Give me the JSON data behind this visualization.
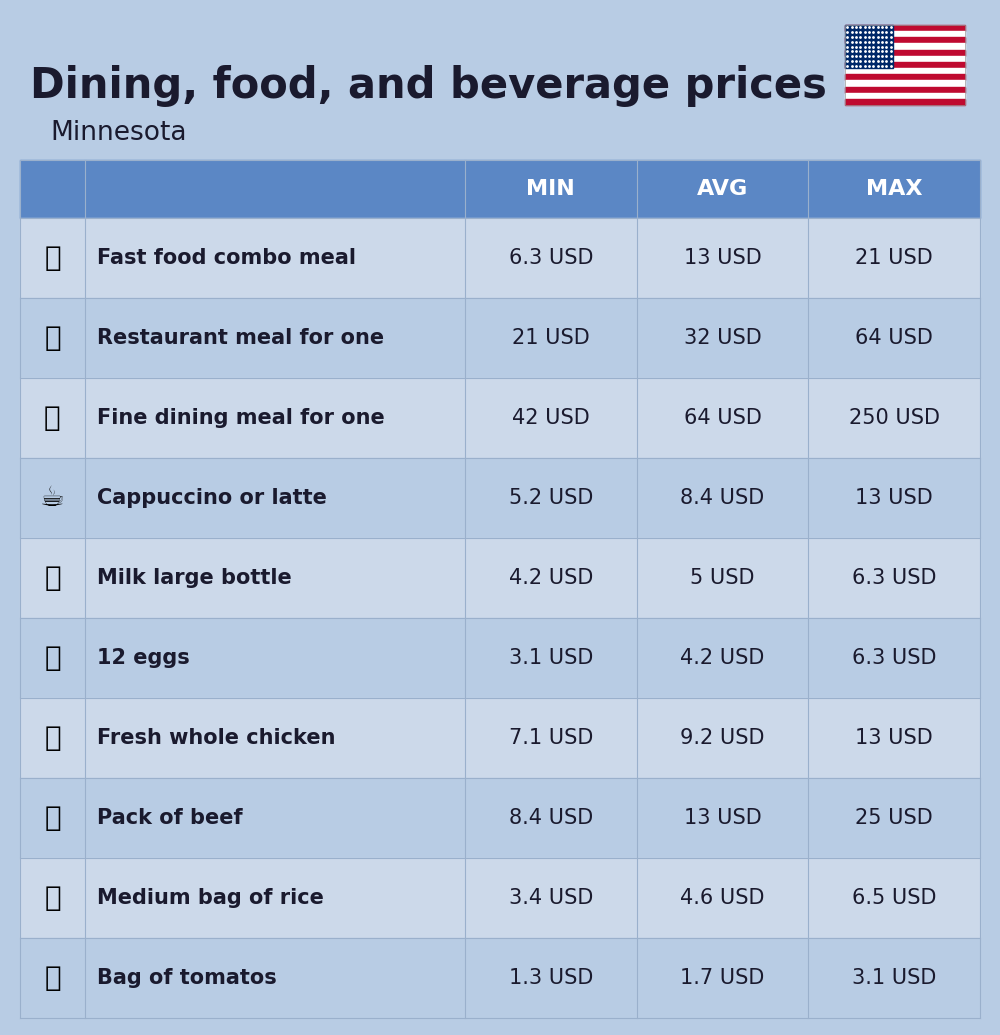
{
  "title": "Dining, food, and beverage prices",
  "subtitle": "Minnesota",
  "background_color": "#b8cce4",
  "header_bg_color": "#5b87c5",
  "header_text_color": "#ffffff",
  "row_bg_odd": "#ccd9ea",
  "row_bg_even": "#b8cce4",
  "columns": [
    "MIN",
    "AVG",
    "MAX"
  ],
  "rows": [
    {
      "label": "Fast food combo meal",
      "min": "6.3 USD",
      "avg": "13 USD",
      "max": "21 USD"
    },
    {
      "label": "Restaurant meal for one",
      "min": "21 USD",
      "avg": "32 USD",
      "max": "64 USD"
    },
    {
      "label": "Fine dining meal for one",
      "min": "42 USD",
      "avg": "64 USD",
      "max": "250 USD"
    },
    {
      "label": "Cappuccino or latte",
      "min": "5.2 USD",
      "avg": "8.4 USD",
      "max": "13 USD"
    },
    {
      "label": "Milk large bottle",
      "min": "4.2 USD",
      "avg": "5 USD",
      "max": "6.3 USD"
    },
    {
      "label": "12 eggs",
      "min": "3.1 USD",
      "avg": "4.2 USD",
      "max": "6.3 USD"
    },
    {
      "label": "Fresh whole chicken",
      "min": "7.1 USD",
      "avg": "9.2 USD",
      "max": "13 USD"
    },
    {
      "label": "Pack of beef",
      "min": "8.4 USD",
      "avg": "13 USD",
      "max": "25 USD"
    },
    {
      "label": "Medium bag of rice",
      "min": "3.4 USD",
      "avg": "4.6 USD",
      "max": "6.5 USD"
    },
    {
      "label": "Bag of tomatos",
      "min": "1.3 USD",
      "avg": "1.7 USD",
      "max": "3.1 USD"
    }
  ],
  "emojis": [
    "🍔",
    "🍳",
    "🍽️",
    "☕",
    "🥛",
    "🥚",
    "🐔",
    "🥩",
    "🍚",
    "🍅"
  ],
  "label_fontsize": 15,
  "value_fontsize": 15,
  "header_fontsize": 16,
  "title_fontsize": 30,
  "subtitle_fontsize": 19,
  "emoji_fontsize": 20,
  "text_color": "#1a1a2e",
  "line_color": "#9ab0cc"
}
